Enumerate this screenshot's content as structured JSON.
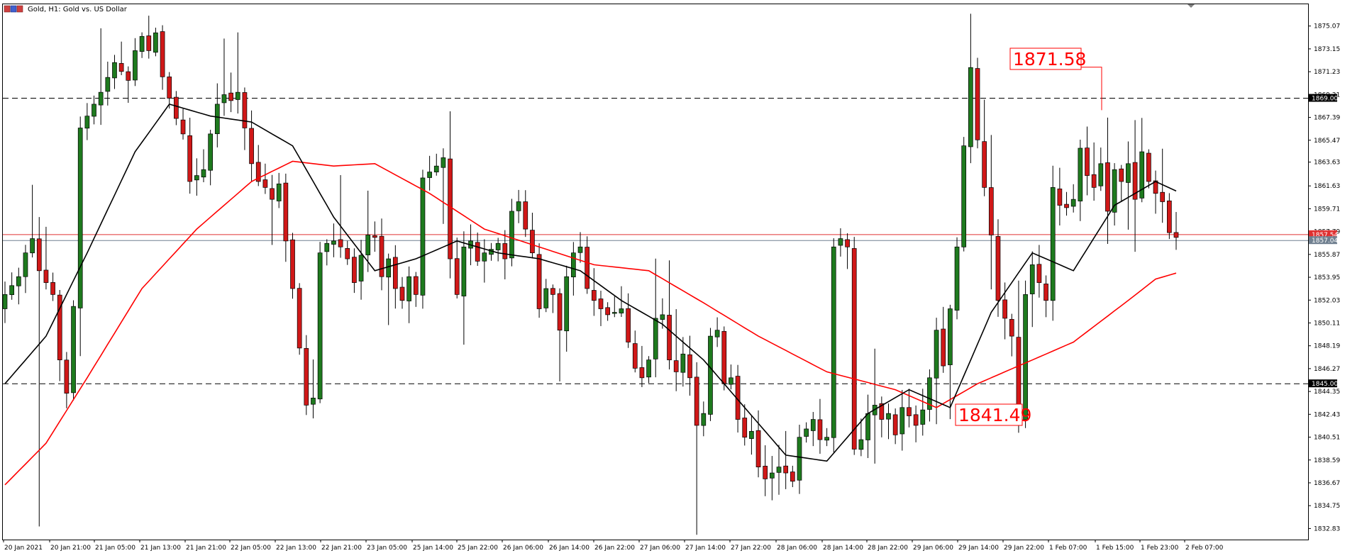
{
  "window": {
    "title": "Gold, H1:  Gold vs. US Dollar",
    "icon": "window-menu-icon"
  },
  "chart_data": {
    "type": "candlestick",
    "title": "Gold, H1:  Gold vs. US Dollar",
    "ylim": [
      1831.9,
      1876.9
    ],
    "y_ticks": [
      "1875.07",
      "1873.15",
      "1871.23",
      "1869.31",
      "1867.39",
      "1865.47",
      "1863.63",
      "1861.63",
      "1859.71",
      "1857.79",
      "1855.87",
      "1853.95",
      "1852.03",
      "1850.11",
      "1848.19",
      "1846.27",
      "1844.35",
      "1842.43",
      "1840.51",
      "1838.59",
      "1836.67",
      "1834.75",
      "1832.83"
    ],
    "x_ticks": [
      "20 Jan 2021",
      "20 Jan 21:00",
      "21 Jan 05:00",
      "21 Jan 13:00",
      "21 Jan 21:00",
      "22 Jan 05:00",
      "22 Jan 13:00",
      "22 Jan 21:00",
      "23 Jan 05:00",
      "25 Jan 14:00",
      "25 Jan 22:00",
      "26 Jan 06:00",
      "26 Jan 14:00",
      "26 Jan 22:00",
      "27 Jan 06:00",
      "27 Jan 14:00",
      "27 Jan 22:00",
      "28 Jan 06:00",
      "28 Jan 14:00",
      "28 Jan 22:00",
      "29 Jan 06:00",
      "29 Jan 14:00",
      "29 Jan 22:00",
      "1 Feb 07:00",
      "1 Feb 15:00",
      "1 Feb 23:00",
      "2 Feb 07:00"
    ],
    "horizontal_lines": [
      {
        "price": 1869.0,
        "label": "1869.00",
        "style": "dashed",
        "color": "#000000"
      },
      {
        "price": 1845.0,
        "label": "1845.00",
        "style": "dashed",
        "color": "#000000"
      }
    ],
    "price_lines": [
      {
        "price": 1857.54,
        "label": "1857.54",
        "color": "#e03030"
      },
      {
        "price": 1857.04,
        "label": "1857.04",
        "color": "#708090"
      }
    ],
    "annotations": [
      {
        "text": "1871.58",
        "price": 1871.58,
        "candle": 141
      },
      {
        "text": "1841.49",
        "price": 1841.49,
        "candle": 139
      }
    ],
    "series": [
      {
        "name": "",
        "kind": "ma",
        "period": 12,
        "color": "#000000"
      },
      {
        "name": "",
        "kind": "ma",
        "period": 60,
        "color": "#ff0000"
      }
    ],
    "path": [
      [
        0,
        1852.5
      ],
      [
        2,
        1854
      ],
      [
        3,
        1856
      ],
      [
        4,
        1857.2
      ],
      [
        5,
        1854.5
      ],
      [
        7,
        1852.5
      ],
      [
        8,
        1847
      ],
      [
        9,
        1844.2
      ],
      [
        10,
        1851.5
      ],
      [
        11,
        1866.5
      ],
      [
        12,
        1867.5
      ],
      [
        13,
        1868.5
      ],
      [
        14,
        1869.5
      ],
      [
        16,
        1872.0
      ],
      [
        18,
        1870.5
      ],
      [
        19,
        1873.0
      ],
      [
        20,
        1874.2
      ],
      [
        21,
        1873.0
      ],
      [
        22,
        1874.5
      ],
      [
        23,
        1870.8
      ],
      [
        24,
        1869.0
      ],
      [
        25,
        1867.3
      ],
      [
        26,
        1866.0
      ],
      [
        27,
        1862.0
      ],
      [
        28,
        1862.5
      ],
      [
        29,
        1863.0
      ],
      [
        30,
        1866.0
      ],
      [
        31,
        1868.5
      ],
      [
        32,
        1869.3
      ],
      [
        33,
        1868.8
      ],
      [
        34,
        1869.5
      ],
      [
        35,
        1866.5
      ],
      [
        36,
        1863.5
      ],
      [
        37,
        1862.0
      ],
      [
        38,
        1861.5
      ],
      [
        39,
        1860.5
      ],
      [
        40,
        1861.8
      ],
      [
        41,
        1857.0
      ],
      [
        42,
        1853.0
      ],
      [
        43,
        1848.0
      ],
      [
        44,
        1843.2
      ],
      [
        45,
        1843.8
      ],
      [
        46,
        1856.0
      ],
      [
        47,
        1856.8
      ],
      [
        48,
        1857.0
      ],
      [
        49,
        1856.5
      ],
      [
        50,
        1855.5
      ],
      [
        51,
        1853.5
      ],
      [
        52,
        1855.8
      ],
      [
        53,
        1857.5
      ],
      [
        54,
        1857.3
      ],
      [
        55,
        1854.0
      ],
      [
        56,
        1855.5
      ],
      [
        57,
        1853.0
      ],
      [
        58,
        1852.0
      ],
      [
        59,
        1854.0
      ],
      [
        60,
        1852.5
      ],
      [
        61,
        1862.3
      ],
      [
        62,
        1862.8
      ],
      [
        63,
        1863.3
      ],
      [
        64,
        1864.0
      ],
      [
        65,
        1855.5
      ],
      [
        66,
        1852.5
      ],
      [
        67,
        1856.5
      ],
      [
        68,
        1857.0
      ],
      [
        69,
        1855.3
      ],
      [
        70,
        1856.0
      ],
      [
        71,
        1856.3
      ],
      [
        72,
        1856.8
      ],
      [
        73,
        1855.5
      ],
      [
        74,
        1859.5
      ],
      [
        75,
        1860.3
      ],
      [
        76,
        1858.0
      ],
      [
        77,
        1856.0
      ],
      [
        78,
        1851.3
      ],
      [
        79,
        1853.0
      ],
      [
        80,
        1852.5
      ],
      [
        81,
        1849.5
      ],
      [
        82,
        1854.0
      ],
      [
        83,
        1856.0
      ],
      [
        84,
        1856.5
      ],
      [
        85,
        1853.0
      ],
      [
        86,
        1852.0
      ],
      [
        87,
        1851.3
      ],
      [
        88,
        1850.8
      ],
      [
        89,
        1851.0
      ],
      [
        90,
        1851.3
      ],
      [
        91,
        1848.5
      ],
      [
        92,
        1846.3
      ],
      [
        93,
        1845.5
      ],
      [
        94,
        1847.0
      ],
      [
        95,
        1850.5
      ],
      [
        96,
        1850.8
      ],
      [
        97,
        1847.0
      ],
      [
        98,
        1846.0
      ],
      [
        99,
        1847.5
      ],
      [
        100,
        1845.5
      ],
      [
        101,
        1841.5
      ],
      [
        102,
        1842.5
      ],
      [
        103,
        1849.0
      ],
      [
        104,
        1849.5
      ],
      [
        105,
        1845.0
      ],
      [
        106,
        1845.5
      ],
      [
        107,
        1842.0
      ],
      [
        108,
        1840.5
      ],
      [
        109,
        1841.0
      ],
      [
        110,
        1838.0
      ],
      [
        111,
        1837.0
      ],
      [
        112,
        1837.5
      ],
      [
        113,
        1838.0
      ],
      [
        114,
        1837.5
      ],
      [
        115,
        1836.8
      ],
      [
        116,
        1840.5
      ],
      [
        117,
        1841.2
      ],
      [
        118,
        1842.0
      ],
      [
        119,
        1840.3
      ],
      [
        120,
        1840.5
      ],
      [
        121,
        1856.5
      ],
      [
        122,
        1857.2
      ],
      [
        123,
        1856.5
      ],
      [
        124,
        1839.5
      ],
      [
        125,
        1840.3
      ],
      [
        126,
        1842.5
      ],
      [
        127,
        1843.2
      ],
      [
        128,
        1842.0
      ],
      [
        129,
        1842.5
      ],
      [
        130,
        1840.7
      ],
      [
        131,
        1843.0
      ],
      [
        132,
        1842.3
      ],
      [
        133,
        1841.5
      ],
      [
        134,
        1842.8
      ],
      [
        135,
        1845.5
      ],
      [
        136,
        1849.5
      ],
      [
        137,
        1846.5
      ],
      [
        138,
        1851.3
      ],
      [
        139,
        1856.5
      ],
      [
        140,
        1865.0
      ],
      [
        141,
        1871.58
      ],
      [
        142,
        1865.5
      ],
      [
        143,
        1861.5
      ],
      [
        144,
        1857.5
      ],
      [
        145,
        1852.0
      ],
      [
        146,
        1850.5
      ],
      [
        147,
        1849.0
      ],
      [
        148,
        1842.0
      ],
      [
        149,
        1852.5
      ],
      [
        150,
        1855.0
      ],
      [
        151,
        1853.5
      ],
      [
        152,
        1852.0
      ],
      [
        153,
        1861.5
      ],
      [
        154,
        1860.0
      ],
      [
        155,
        1859.8
      ],
      [
        156,
        1860.5
      ],
      [
        157,
        1864.8
      ],
      [
        158,
        1862.5
      ],
      [
        159,
        1861.5
      ],
      [
        160,
        1863.5
      ],
      [
        161,
        1859.5
      ],
      [
        162,
        1863.0
      ],
      [
        163,
        1862.0
      ],
      [
        164,
        1863.5
      ],
      [
        165,
        1860.5
      ],
      [
        166,
        1864.5
      ],
      [
        167,
        1862.0
      ],
      [
        168,
        1861.0
      ],
      [
        169,
        1860.3
      ],
      [
        170,
        1857.7
      ],
      [
        171,
        1857.3
      ]
    ],
    "ma_fast": [
      [
        0,
        1845
      ],
      [
        6,
        1849
      ],
      [
        12,
        1856
      ],
      [
        19,
        1864.5
      ],
      [
        24,
        1868.5
      ],
      [
        30,
        1867.5
      ],
      [
        36,
        1867
      ],
      [
        42,
        1865
      ],
      [
        48,
        1859
      ],
      [
        54,
        1854.5
      ],
      [
        60,
        1855.5
      ],
      [
        66,
        1857
      ],
      [
        72,
        1856
      ],
      [
        78,
        1855.5
      ],
      [
        84,
        1854.5
      ],
      [
        90,
        1852
      ],
      [
        96,
        1850
      ],
      [
        102,
        1847
      ],
      [
        108,
        1843
      ],
      [
        114,
        1839
      ],
      [
        120,
        1838.5
      ],
      [
        126,
        1842.5
      ],
      [
        132,
        1844.5
      ],
      [
        138,
        1843
      ],
      [
        144,
        1851
      ],
      [
        150,
        1856
      ],
      [
        156,
        1854.5
      ],
      [
        162,
        1860
      ],
      [
        168,
        1862
      ],
      [
        171,
        1861.2
      ]
    ],
    "ma_slow": [
      [
        0,
        1836.5
      ],
      [
        6,
        1840
      ],
      [
        12,
        1845.5
      ],
      [
        20,
        1853
      ],
      [
        28,
        1858
      ],
      [
        36,
        1862
      ],
      [
        42,
        1863.7
      ],
      [
        48,
        1863.3
      ],
      [
        54,
        1863.5
      ],
      [
        62,
        1861
      ],
      [
        70,
        1858
      ],
      [
        78,
        1856.5
      ],
      [
        86,
        1855
      ],
      [
        94,
        1854.5
      ],
      [
        102,
        1851.8
      ],
      [
        110,
        1849
      ],
      [
        120,
        1846
      ],
      [
        130,
        1844.5
      ],
      [
        136,
        1843
      ],
      [
        142,
        1845
      ],
      [
        148,
        1846.5
      ],
      [
        156,
        1848.5
      ],
      [
        164,
        1852
      ],
      [
        168,
        1853.8
      ],
      [
        171,
        1854.3
      ]
    ]
  }
}
